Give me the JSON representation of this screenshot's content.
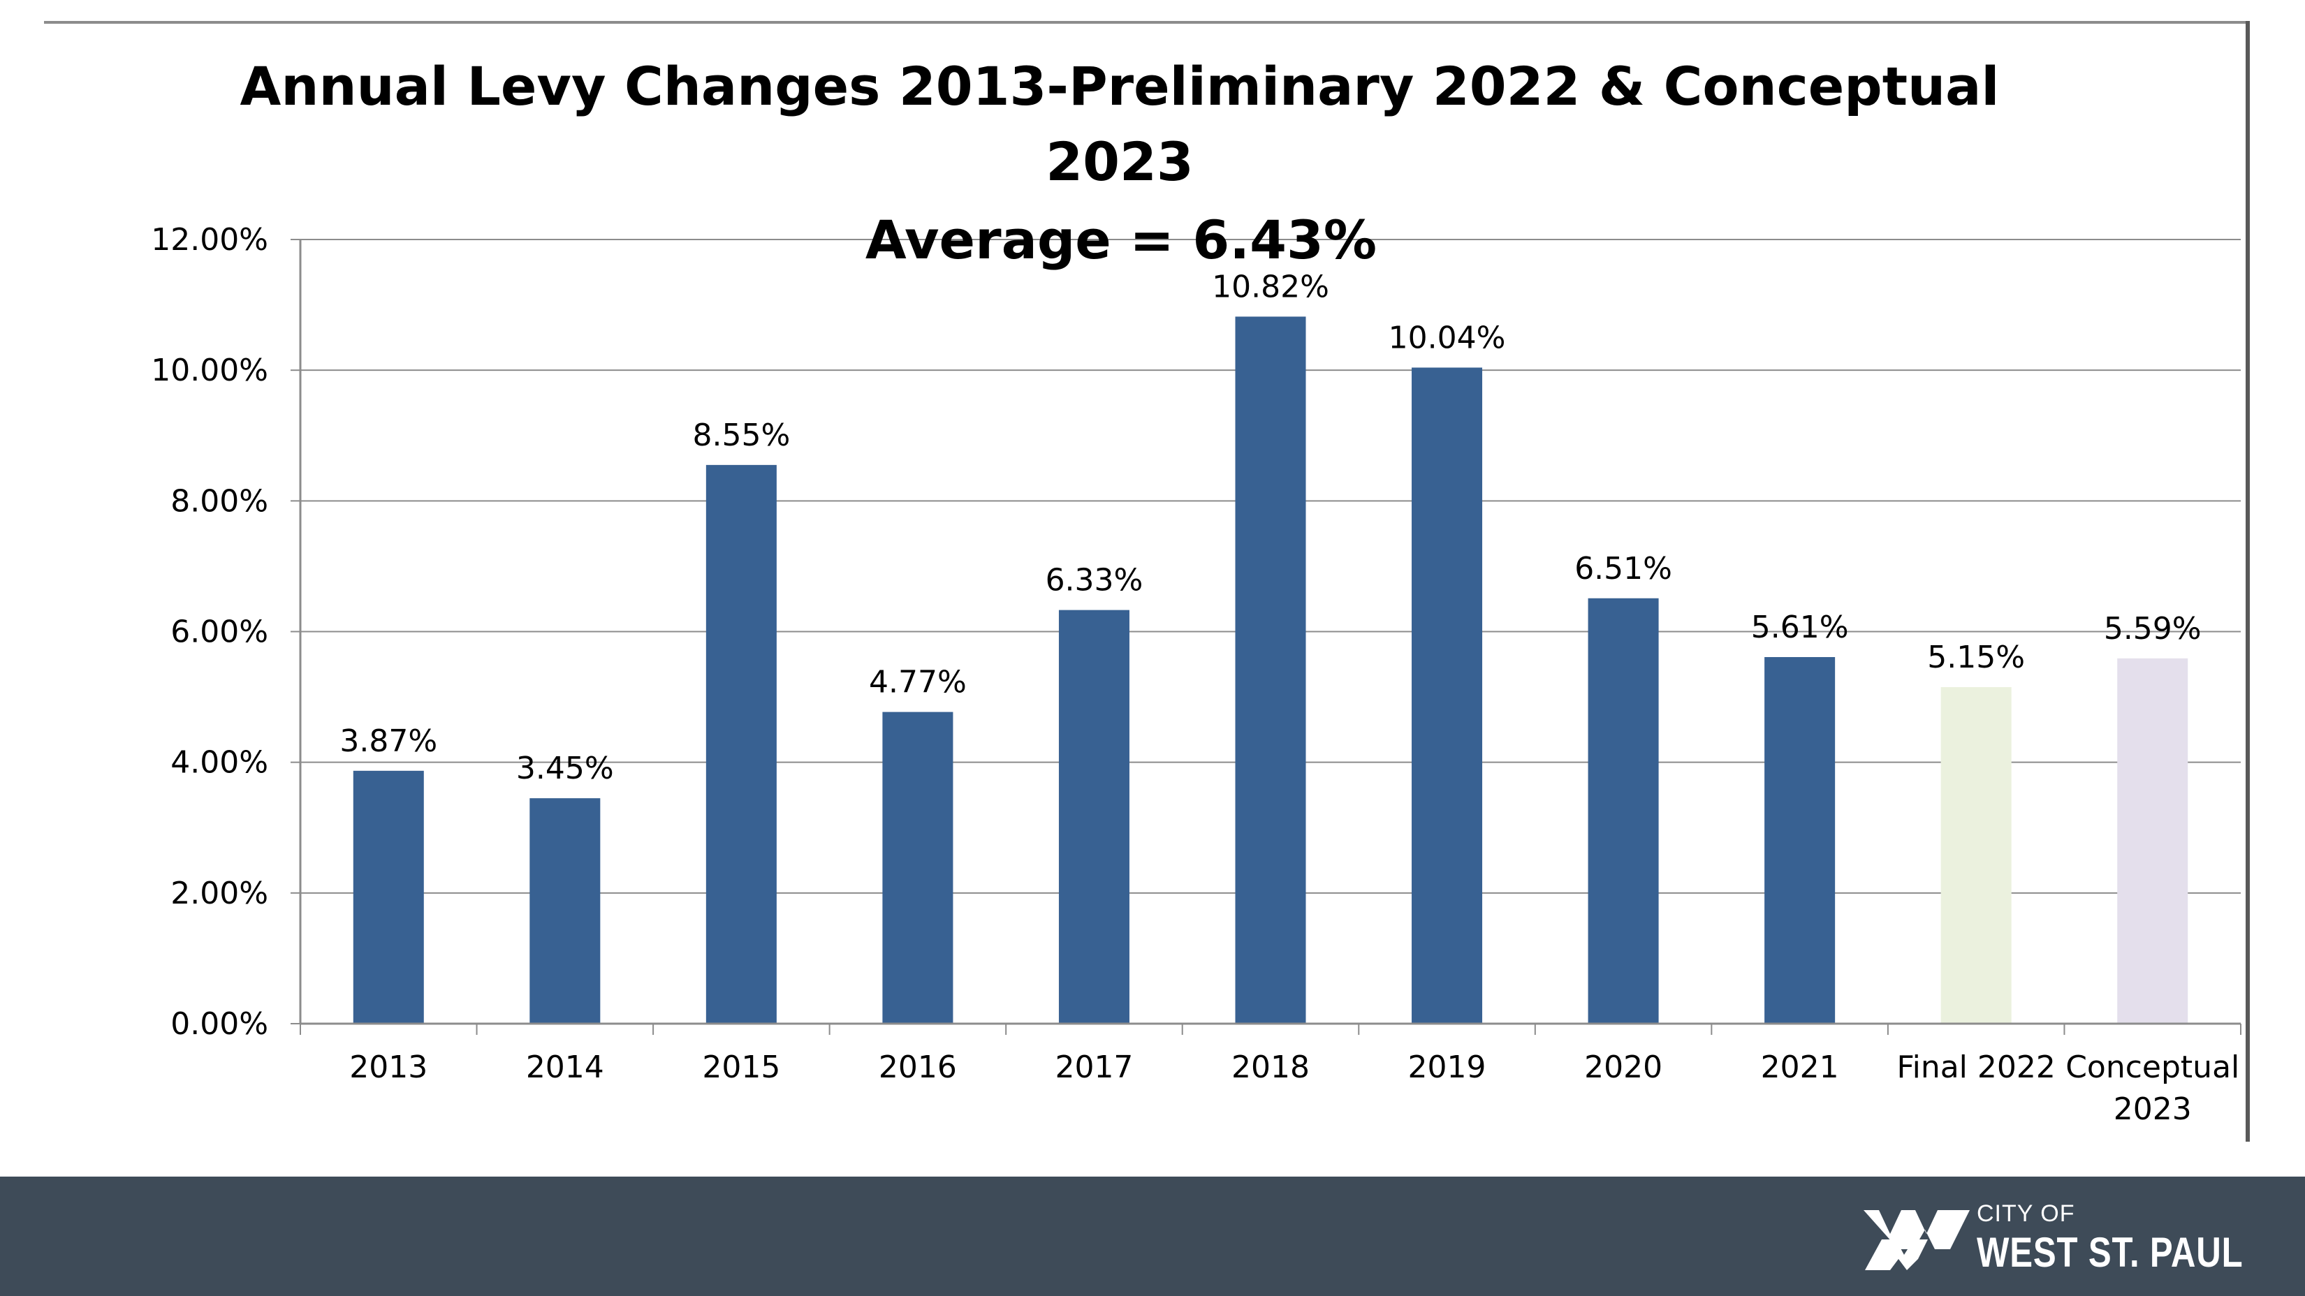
{
  "chart_data": {
    "type": "bar",
    "title": "Annual Levy Changes 2013-Preliminary 2022 & Conceptual 2023",
    "title_lines": [
      "Annual Levy Changes 2013-Preliminary 2022 & Conceptual",
      "2023"
    ],
    "annotation": "Average = 6.43%",
    "categories": [
      [
        "2013"
      ],
      [
        "2014"
      ],
      [
        "2015"
      ],
      [
        "2016"
      ],
      [
        "2017"
      ],
      [
        "2018"
      ],
      [
        "2019"
      ],
      [
        "2020"
      ],
      [
        "2021"
      ],
      [
        "Final 2022"
      ],
      [
        "Conceptual",
        "2023"
      ]
    ],
    "values": [
      3.87,
      3.45,
      8.55,
      4.77,
      6.33,
      10.82,
      10.04,
      6.51,
      5.61,
      5.15,
      5.59
    ],
    "value_labels": [
      "3.87%",
      "3.45%",
      "8.55%",
      "4.77%",
      "6.33%",
      "10.82%",
      "10.04%",
      "6.51%",
      "5.61%",
      "5.15%",
      "5.59%"
    ],
    "bar_colors": [
      "#386192",
      "#386192",
      "#386192",
      "#386192",
      "#386192",
      "#386192",
      "#386192",
      "#386192",
      "#386192",
      "#ebf1de",
      "#e4dfec"
    ],
    "yticks": [
      0,
      2,
      4,
      6,
      8,
      10,
      12
    ],
    "ytick_labels": [
      "0.00%",
      "2.00%",
      "4.00%",
      "6.00%",
      "8.00%",
      "10.00%",
      "12.00%"
    ],
    "ylim": [
      0,
      12
    ],
    "xlabel": "",
    "ylabel": "",
    "grid": true,
    "legend": "none"
  },
  "footer": {
    "background": "#3e4b58",
    "logo_small": "CITY OF",
    "logo_big": "WEST ST. PAUL"
  }
}
